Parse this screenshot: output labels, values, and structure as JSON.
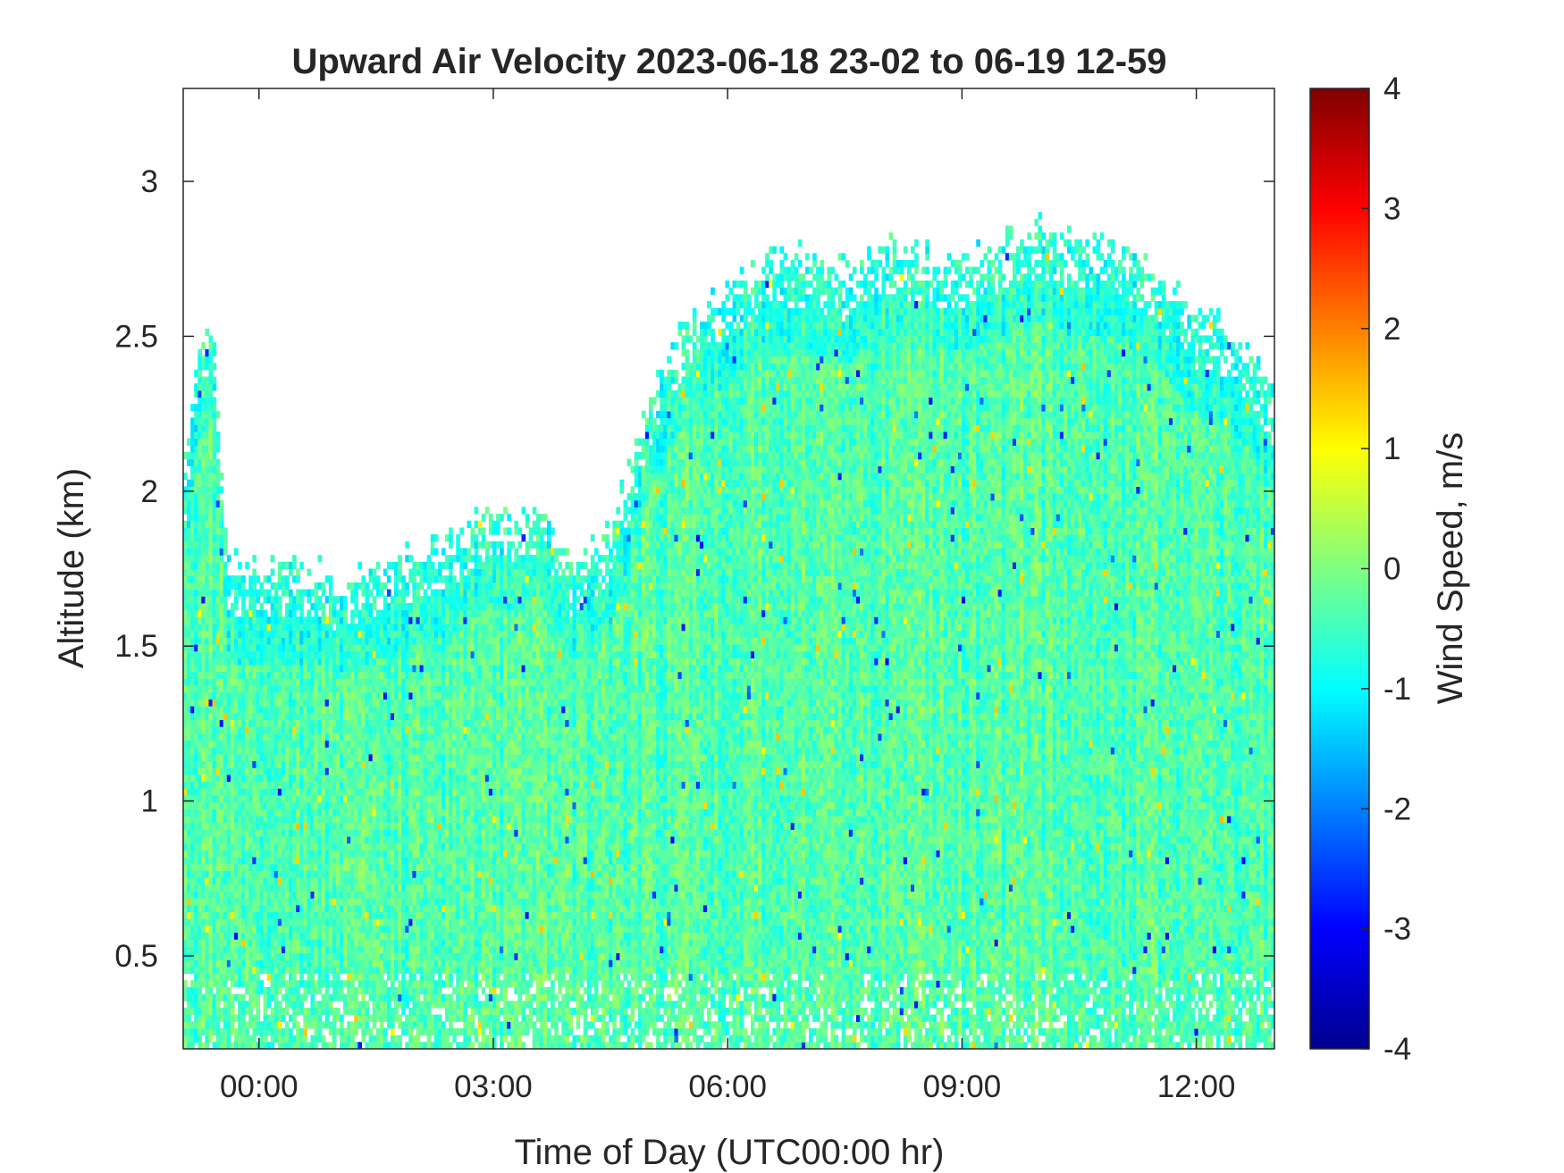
{
  "chart_data": {
    "type": "heatmap",
    "title": "Upward Air Velocity 2023-06-18 23-02 to 06-19 12-59",
    "xlabel": "Time of Day (UTC00:00 hr)",
    "ylabel": "Altitude (km)",
    "xlim": [
      -0.97,
      13.0
    ],
    "ylim": [
      0.2,
      3.3
    ],
    "x_ticks": [
      {
        "value": 0,
        "label": "00:00"
      },
      {
        "value": 3,
        "label": "03:00"
      },
      {
        "value": 6,
        "label": "06:00"
      },
      {
        "value": 9,
        "label": "09:00"
      },
      {
        "value": 12,
        "label": "12:00"
      }
    ],
    "y_ticks": [
      {
        "value": 0.5,
        "label": "0.5"
      },
      {
        "value": 1,
        "label": "1"
      },
      {
        "value": 1.5,
        "label": "1.5"
      },
      {
        "value": 2,
        "label": "2"
      },
      {
        "value": 2.5,
        "label": "2.5"
      },
      {
        "value": 3,
        "label": "3"
      }
    ],
    "colorbar": {
      "label": "Wind Speed, m/s",
      "range": [
        -4,
        4
      ],
      "colormap": "jet",
      "ticks": [
        {
          "value": -4,
          "label": "-4"
        },
        {
          "value": -3,
          "label": "-3"
        },
        {
          "value": -2,
          "label": "-2"
        },
        {
          "value": -1,
          "label": "-1"
        },
        {
          "value": 0,
          "label": "0"
        },
        {
          "value": 1,
          "label": "1"
        },
        {
          "value": 2,
          "label": "2"
        },
        {
          "value": 3,
          "label": "3"
        },
        {
          "value": 4,
          "label": "4"
        }
      ]
    },
    "data_top_profile": {
      "time_hr": [
        -0.97,
        -0.8,
        -0.6,
        -0.4,
        0.0,
        0.5,
        0.7,
        1.0,
        1.5,
        2.0,
        2.5,
        3.0,
        3.3,
        3.6,
        4.0,
        4.5,
        5.0,
        5.2,
        5.5,
        6.0,
        6.5,
        7.0,
        7.5,
        8.0,
        8.5,
        9.0,
        9.5,
        10.0,
        10.5,
        11.0,
        11.5,
        12.0,
        12.5,
        13.0
      ],
      "altitude_km": [
        2.0,
        2.45,
        2.55,
        1.75,
        1.75,
        1.75,
        1.75,
        1.7,
        1.75,
        1.8,
        1.85,
        1.95,
        1.9,
        1.95,
        1.75,
        1.85,
        2.3,
        2.4,
        2.55,
        2.65,
        2.75,
        2.75,
        2.7,
        2.8,
        2.75,
        2.75,
        2.8,
        2.85,
        2.8,
        2.8,
        2.7,
        2.55,
        2.5,
        2.3
      ]
    },
    "typical_value_m_s": 0,
    "typical_range_m_s": [
      -1.2,
      0.8
    ],
    "grid": false
  }
}
